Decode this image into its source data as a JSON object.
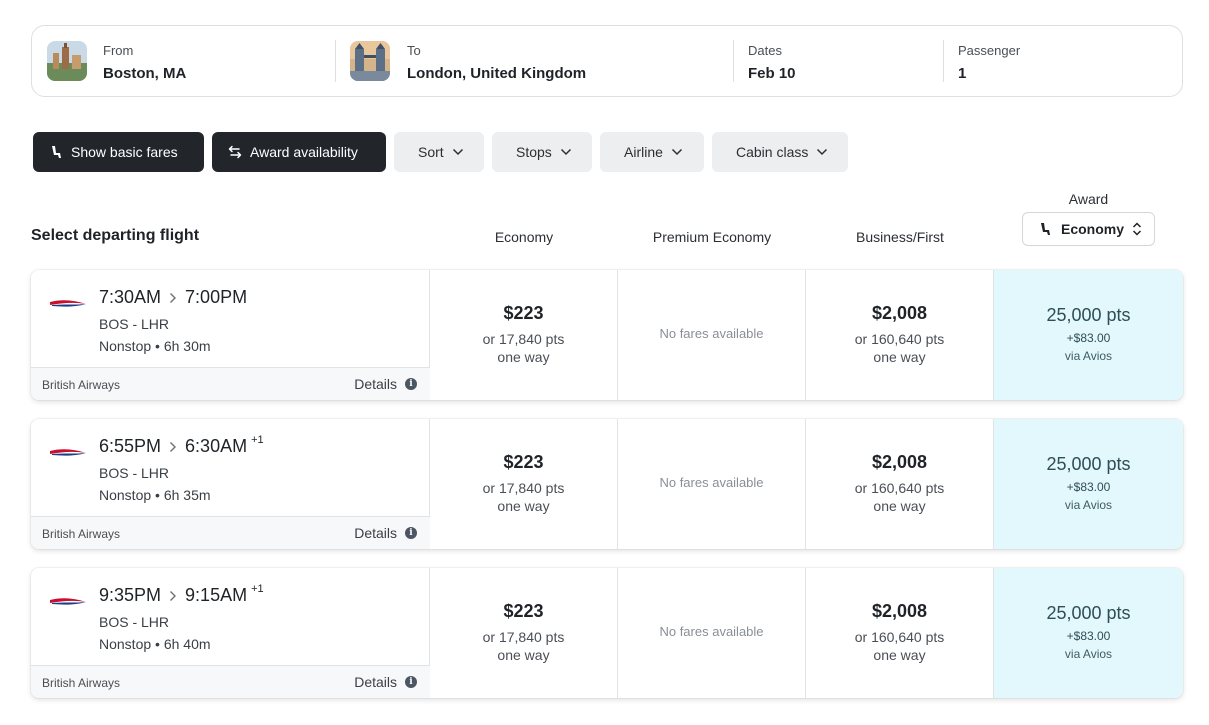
{
  "search": {
    "from_label": "From",
    "from_value": "Boston, MA",
    "to_label": "To",
    "to_value": "London, United Kingdom",
    "dates_label": "Dates",
    "dates_value": "Feb 10",
    "passenger_label": "Passenger",
    "passenger_value": "1"
  },
  "filters": {
    "basic_fares": "Show basic fares",
    "award_availability": "Award availability",
    "sort": "Sort",
    "stops": "Stops",
    "airline": "Airline",
    "cabin_class": "Cabin class"
  },
  "table": {
    "title": "Select departing flight",
    "col_economy": "Economy",
    "col_premium": "Premium Economy",
    "col_business": "Business/First",
    "award_label": "Award",
    "award_select": "Economy"
  },
  "flights": [
    {
      "depart": "7:30AM",
      "arrive": "7:00PM",
      "day_offset": "",
      "route": "BOS - LHR",
      "stops": "Nonstop • 6h 30m",
      "airline": "British Airways",
      "details": "Details",
      "economy_price": "$223",
      "economy_pts": "or 17,840 pts",
      "economy_way": "one way",
      "premium": "No fares available",
      "business_price": "$2,008",
      "business_pts": "or 160,640 pts",
      "business_way": "one way",
      "award_pts": "25,000 pts",
      "award_fee": "+$83.00",
      "award_via": "via Avios"
    },
    {
      "depart": "6:55PM",
      "arrive": "6:30AM",
      "day_offset": "+1",
      "route": "BOS - LHR",
      "stops": "Nonstop • 6h 35m",
      "airline": "British Airways",
      "details": "Details",
      "economy_price": "$223",
      "economy_pts": "or 17,840 pts",
      "economy_way": "one way",
      "premium": "No fares available",
      "business_price": "$2,008",
      "business_pts": "or 160,640 pts",
      "business_way": "one way",
      "award_pts": "25,000 pts",
      "award_fee": "+$83.00",
      "award_via": "via Avios"
    },
    {
      "depart": "9:35PM",
      "arrive": "9:15AM",
      "day_offset": "+1",
      "route": "BOS - LHR",
      "stops": "Nonstop • 6h 40m",
      "airline": "British Airways",
      "details": "Details",
      "economy_price": "$223",
      "economy_pts": "or 17,840 pts",
      "economy_way": "one way",
      "premium": "No fares available",
      "business_price": "$2,008",
      "business_pts": "or 160,640 pts",
      "business_way": "one way",
      "award_pts": "25,000 pts",
      "award_fee": "+$83.00",
      "award_via": "via Avios"
    }
  ],
  "colors": {
    "dark_button": "#22262b",
    "light_button": "#eceef0",
    "award_bg": "#e2f8fc",
    "award_text": "#2f4d57"
  }
}
